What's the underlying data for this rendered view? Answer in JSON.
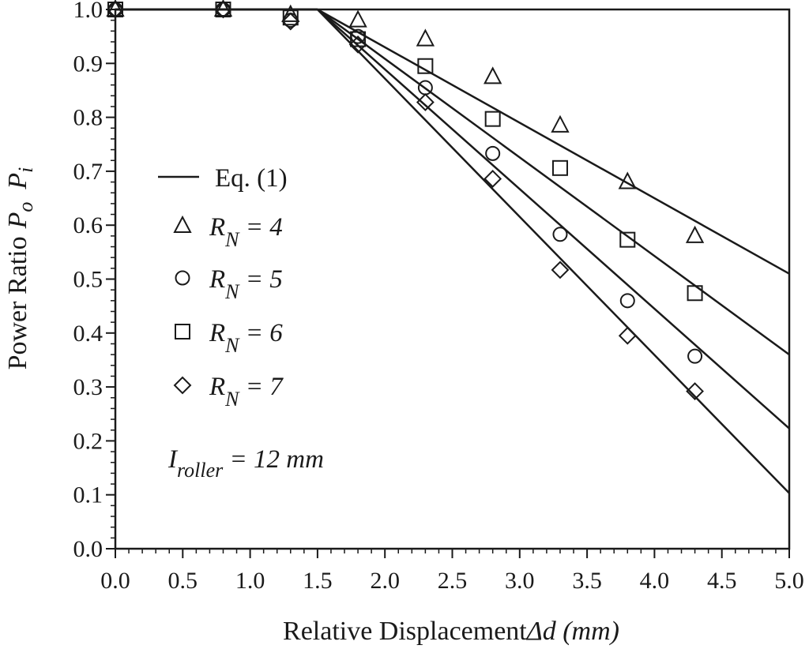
{
  "chart_data": {
    "type": "scatter",
    "xlabel": "Relative Displacement",
    "xlabel_symbol": "Δd (mm)",
    "ylabel": "Power Ratio",
    "ylabel_symbol_1": "P",
    "ylabel_sub_1": "o",
    "ylabel_symbol_2": "P",
    "ylabel_sub_2": "i",
    "xlim": [
      0.0,
      5.0
    ],
    "ylim": [
      0.0,
      1.0
    ],
    "x_ticks": [
      "0.0",
      "0.5",
      "1.0",
      "1.5",
      "2.0",
      "2.5",
      "3.0",
      "3.5",
      "4.0",
      "4.5",
      "5.0"
    ],
    "y_ticks": [
      "0.0",
      "0.1",
      "0.2",
      "0.3",
      "0.4",
      "0.5",
      "0.6",
      "0.7",
      "0.8",
      "0.9",
      "1.0"
    ],
    "grid": false,
    "legend_position": "left",
    "model_label": "Eq. (1)",
    "series": [
      {
        "name": "R_N = 4",
        "label_main": "R",
        "label_sub": "N",
        "label_tail": " = 4",
        "marker": "triangle",
        "x": [
          0.0,
          0.8,
          1.3,
          1.8,
          2.3,
          2.8,
          3.3,
          3.8,
          4.3
        ],
        "y": [
          1.0,
          1.0,
          0.99,
          0.98,
          0.945,
          0.875,
          0.785,
          0.68,
          0.58
        ],
        "fit": [
          [
            1.5,
            1.0
          ],
          [
            5.0,
            0.51
          ]
        ]
      },
      {
        "name": "R_N = 5",
        "label_main": "R",
        "label_sub": "N",
        "label_tail": " = 5",
        "marker": "circle",
        "x": [
          0.0,
          0.8,
          1.3,
          1.8,
          2.3,
          2.8,
          3.3,
          3.8,
          4.3
        ],
        "y": [
          1.0,
          1.0,
          0.98,
          0.95,
          0.855,
          0.733,
          0.583,
          0.46,
          0.357
        ],
        "fit": [
          [
            1.5,
            1.0
          ],
          [
            5.0,
            0.223
          ]
        ]
      },
      {
        "name": "R_N = 6",
        "label_main": "R",
        "label_sub": "N",
        "label_tail": " = 6",
        "marker": "square",
        "x": [
          0.0,
          0.8,
          1.3,
          1.8,
          2.3,
          2.8,
          3.3,
          3.8,
          4.3
        ],
        "y": [
          1.0,
          1.0,
          0.985,
          0.945,
          0.895,
          0.797,
          0.706,
          0.573,
          0.474
        ],
        "fit": [
          [
            1.5,
            1.0
          ],
          [
            5.0,
            0.36
          ]
        ]
      },
      {
        "name": "R_N = 7",
        "label_main": "R",
        "label_sub": "N",
        "label_tail": " = 7",
        "marker": "diamond",
        "x": [
          0.0,
          0.8,
          1.3,
          1.8,
          2.3,
          2.8,
          3.3,
          3.8,
          4.3
        ],
        "y": [
          1.0,
          1.0,
          0.978,
          0.935,
          0.828,
          0.686,
          0.517,
          0.395,
          0.292
        ],
        "fit": [
          [
            1.5,
            1.0
          ],
          [
            5.0,
            0.103
          ]
        ]
      }
    ],
    "annotation": {
      "main": "I",
      "sub": "roller",
      "tail": " = 12 mm"
    },
    "colors": {
      "ink": "#1a1a1a",
      "background": "#ffffff"
    }
  }
}
